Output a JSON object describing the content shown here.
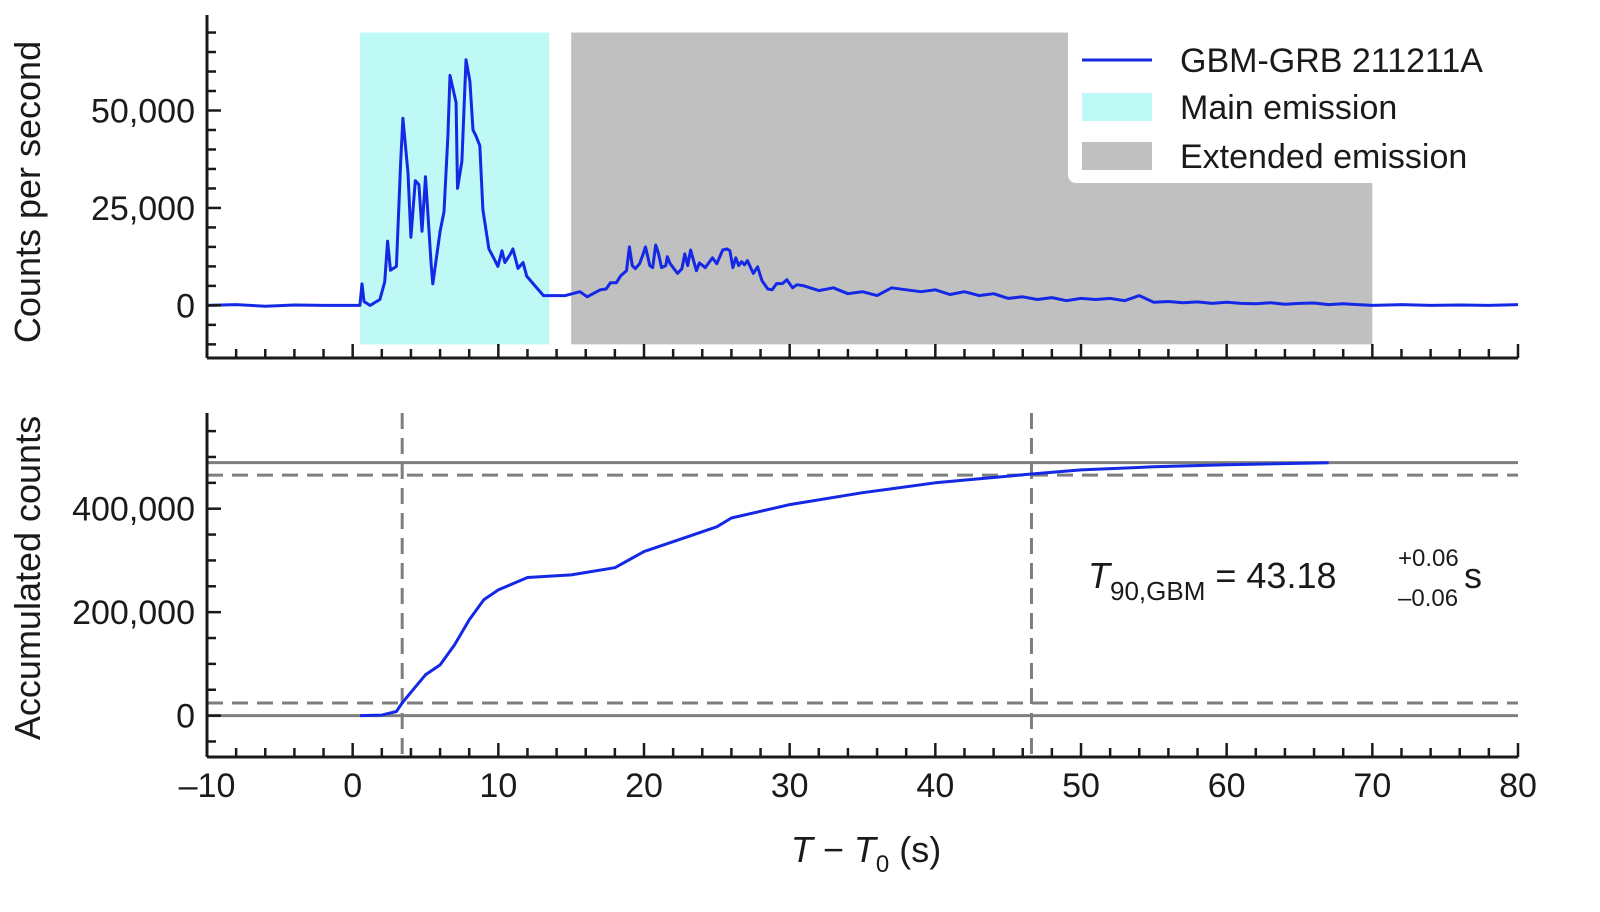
{
  "chart_data": [
    {
      "type": "line",
      "ylabel": "Counts per second",
      "xlim": [
        -10,
        80
      ],
      "ylim": [
        -13500,
        74500
      ],
      "xticks": [
        -10,
        0,
        10,
        20,
        30,
        40,
        50,
        60,
        70,
        80
      ],
      "yticks": [
        0,
        25000,
        50000
      ],
      "ytick_labels": [
        "0",
        "25,000",
        "50,000"
      ],
      "x_minor_step": 2,
      "y_minor_step": 5000,
      "grid": false,
      "legend_position": "top-right",
      "legend": [
        {
          "label": "GBM-GRB 211211A",
          "kind": "line",
          "color": "#1428e6"
        },
        {
          "label": "Main emission",
          "kind": "patch",
          "color": "#bff9f6"
        },
        {
          "label": "Extended emission",
          "kind": "patch",
          "color": "#c0c0c0"
        }
      ],
      "shaded_regions": [
        {
          "name": "Main emission",
          "x": [
            0.5,
            13.5
          ],
          "y": [
            -10000,
            70000
          ],
          "color": "#bff9f6"
        },
        {
          "name": "Extended emission",
          "x": [
            15,
            70
          ],
          "y": [
            -10000,
            70000
          ],
          "color": "#c0c0c0"
        }
      ],
      "series": [
        {
          "name": "GBM-GRB 211211A",
          "color": "#1428e6",
          "x": [
            -10,
            -8,
            -6,
            -4,
            -2,
            0,
            0.5,
            0.64,
            0.78,
            1.19,
            1.87,
            2.2,
            2.4,
            2.6,
            3.0,
            3.3,
            3.45,
            3.8,
            4.0,
            4.3,
            4.55,
            4.76,
            5.0,
            5.4,
            5.5,
            6.0,
            6.27,
            6.54,
            6.68,
            7.1,
            7.2,
            7.5,
            7.78,
            8.05,
            8.26,
            8.46,
            8.73,
            8.94,
            9.35,
            9.7,
            9.97,
            10.25,
            10.45,
            10.8,
            11.0,
            11.35,
            11.7,
            11.95,
            12.4,
            13.1,
            13.8,
            14.6,
            15.6,
            16.1,
            16.5,
            17.0,
            17.4,
            17.7,
            18.1,
            18.4,
            18.8,
            19.0,
            19.2,
            19.4,
            19.7,
            19.9,
            20.1,
            20.4,
            20.6,
            20.8,
            21.0,
            21.2,
            21.5,
            21.6,
            21.8,
            22.3,
            22.6,
            22.8,
            23.0,
            23.2,
            23.6,
            23.8,
            24.2,
            24.7,
            25.0,
            25.4,
            25.7,
            25.9,
            26.1,
            26.3,
            26.5,
            26.7,
            26.9,
            27.1,
            27.5,
            27.8,
            28.1,
            28.5,
            28.8,
            29.1,
            29.5,
            29.8,
            30.2,
            30.5,
            31,
            32,
            33,
            34,
            35,
            36,
            37,
            38,
            39,
            40,
            41,
            42,
            43,
            44,
            45,
            46,
            47,
            48,
            49,
            50,
            51,
            52,
            53,
            54,
            55,
            56,
            57,
            58,
            59,
            60,
            61,
            62,
            63,
            64,
            65,
            66,
            67,
            68,
            69,
            70,
            72,
            74,
            76,
            78,
            80
          ],
          "y": [
            0,
            200,
            -200,
            100,
            0,
            0,
            0,
            5500,
            1000,
            0,
            1500,
            6000,
            16500,
            9000,
            10000,
            37000,
            48000,
            34000,
            17500,
            32000,
            31000,
            19000,
            33000,
            10000,
            5500,
            19000,
            24000,
            43500,
            59000,
            52000,
            30000,
            37000,
            63000,
            57500,
            45000,
            43500,
            41000,
            24500,
            14500,
            12000,
            10000,
            14000,
            11000,
            13000,
            14500,
            9500,
            11000,
            7500,
            5500,
            2500,
            2500,
            2500,
            3500,
            2200,
            3000,
            4000,
            4200,
            5800,
            5800,
            7600,
            8900,
            15000,
            10200,
            9400,
            10700,
            12700,
            15000,
            10200,
            9700,
            15500,
            13200,
            9700,
            10200,
            12500,
            10700,
            8200,
            9400,
            13200,
            10200,
            14200,
            8900,
            10900,
            9700,
            12200,
            10700,
            14200,
            14500,
            14000,
            9700,
            12200,
            10200,
            11200,
            10400,
            11500,
            8200,
            9900,
            6300,
            4200,
            4000,
            5600,
            5600,
            6600,
            4500,
            5300,
            5000,
            3800,
            4500,
            3000,
            3500,
            2500,
            4500,
            4000,
            3500,
            4000,
            2800,
            3500,
            2500,
            3000,
            1800,
            2200,
            1500,
            2000,
            1200,
            1800,
            1500,
            1800,
            1200,
            2500,
            800,
            1000,
            700,
            900,
            500,
            800,
            500,
            400,
            700,
            300,
            500,
            600,
            200,
            400,
            200,
            0,
            200,
            0,
            100,
            0,
            200
          ]
        }
      ]
    },
    {
      "type": "line",
      "xlabel": "T − T0 (s)",
      "xlabel_parts": {
        "T": "T",
        "minus": " − ",
        "T0": "T",
        "sub0": "0",
        "unit": " (s)"
      },
      "ylabel": "Accumulated counts",
      "xlim": [
        -10,
        80
      ],
      "ylim": [
        -80000,
        585000
      ],
      "xticks": [
        -10,
        0,
        10,
        20,
        30,
        40,
        50,
        60,
        70,
        80
      ],
      "xtick_labels": [
        "–10",
        "0",
        "10",
        "20",
        "30",
        "40",
        "50",
        "60",
        "70",
        "80"
      ],
      "yticks": [
        0,
        200000,
        400000
      ],
      "ytick_labels": [
        "0",
        "200,000",
        "400,000"
      ],
      "x_minor_step": 2,
      "y_minor_step": 50000,
      "grid": false,
      "reference_lines": {
        "horizontal_solid": [
          0,
          489000
        ],
        "horizontal_dashed": [
          24500,
          465000
        ],
        "vertical_dashed": [
          3.4,
          46.6
        ],
        "color": "#7f7f7f"
      },
      "annotation": {
        "T": "T",
        "sub": "90,GBM",
        "eq": " = 43.18",
        "sup": "+0.06",
        "inf": "–0.06",
        "unit": " s"
      },
      "series": [
        {
          "name": "GBM-GRB 211211A",
          "color": "#1428e6",
          "x": [
            0.5,
            2,
            3.0,
            3.4,
            4,
            5,
            6,
            7,
            8,
            9,
            10,
            12,
            15,
            18,
            20,
            25,
            26,
            30,
            35,
            40,
            46.6,
            50,
            55,
            60,
            67
          ],
          "y": [
            0,
            1000,
            8000,
            24500,
            45000,
            79000,
            98000,
            137000,
            185000,
            224000,
            243000,
            267000,
            272000,
            286000,
            317000,
            365000,
            382000,
            408000,
            431000,
            450000,
            467000,
            475000,
            481000,
            485000,
            489000
          ]
        }
      ]
    }
  ]
}
